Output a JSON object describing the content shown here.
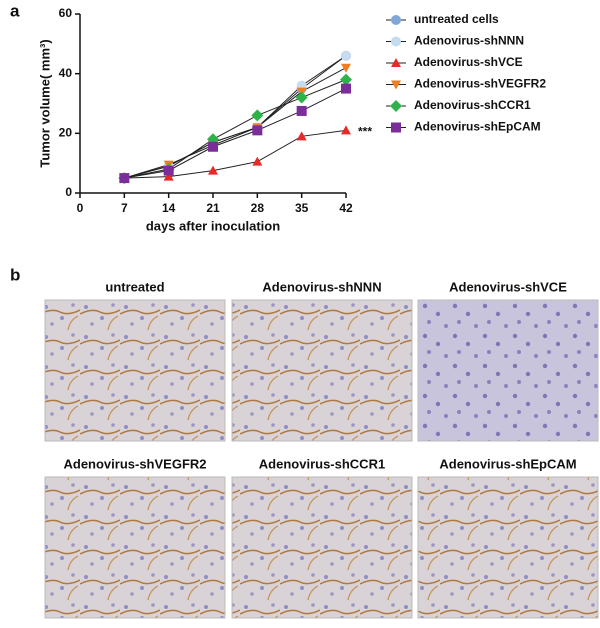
{
  "panel_a_label": "a",
  "chart_data": {
    "type": "line",
    "y_label": "Tumor volume( mm³)",
    "x_label": "days after inoculation",
    "x": [
      7,
      14,
      21,
      28,
      35,
      42
    ],
    "xlim": [
      0,
      42
    ],
    "xticks": [
      0,
      7,
      14,
      21,
      28,
      35,
      42
    ],
    "ylim": [
      0,
      60
    ],
    "yticks": [
      0,
      20,
      40,
      60
    ],
    "annotation": "***",
    "legend": "outside-right",
    "line_color": "#222222",
    "series": [
      {
        "name": "untreated cells",
        "color": "#7fa7d8",
        "marker": "circle",
        "values": [
          5,
          9,
          17,
          22,
          35,
          46
        ]
      },
      {
        "name": "Adenovirus-shNNN",
        "color": "#c5dcf0",
        "marker": "circle",
        "values": [
          5,
          9,
          17,
          22,
          36,
          46
        ]
      },
      {
        "name": "Adenovirus-shVCE",
        "color": "#e8292a",
        "marker": "triangle",
        "values": [
          5,
          5.5,
          7.5,
          10.5,
          19,
          21
        ]
      },
      {
        "name": "Adenovirus-shVEGFR2",
        "color": "#ef7d22",
        "marker": "triangle-down",
        "values": [
          5,
          9.5,
          16,
          22,
          34,
          42
        ]
      },
      {
        "name": "Adenovirus-shCCR1",
        "color": "#2eb34a",
        "marker": "diamond",
        "values": [
          5,
          8,
          18,
          26,
          32,
          38
        ]
      },
      {
        "name": "Adenovirus-shEpCAM",
        "color": "#7b2e9a",
        "marker": "square",
        "values": [
          5,
          7.5,
          15.5,
          21,
          27.5,
          35
        ]
      }
    ]
  },
  "panel_b_label": "b",
  "images": [
    {
      "label": "untreated"
    },
    {
      "label": "Adenovirus-shNNN"
    },
    {
      "label": "Adenovirus-shVCE"
    },
    {
      "label": "Adenovirus-shVEGFR2"
    },
    {
      "label": "Adenovirus-shCCR1"
    },
    {
      "label": "Adenovirus-shEpCAM"
    }
  ]
}
